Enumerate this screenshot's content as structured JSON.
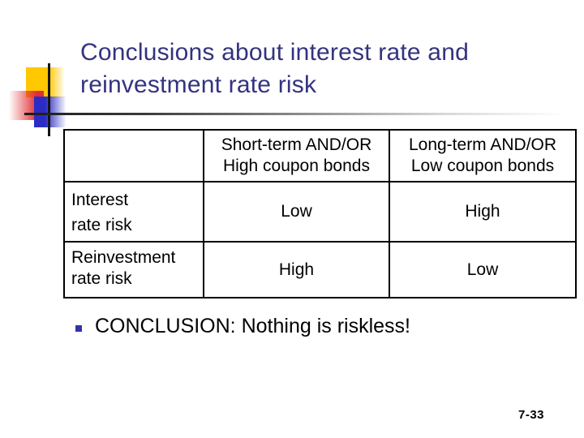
{
  "slide_title": {
    "line1": "Conclusions about interest rate and",
    "line2": "reinvestment rate risk"
  },
  "risk_table": {
    "corner_label": "",
    "column_headers": [
      {
        "line1": "Short-term AND/OR",
        "line2": "High coupon bonds"
      },
      {
        "line1": "Long-term AND/OR",
        "line2": "Low coupon bonds"
      }
    ],
    "rows": [
      {
        "label": {
          "line1": "Interest",
          "line2": "rate risk"
        },
        "values": [
          "Low",
          "High"
        ]
      },
      {
        "label": {
          "line1": "Reinvestment",
          "line2": "rate risk"
        },
        "values": [
          "High",
          "Low"
        ]
      }
    ]
  },
  "conclusion": {
    "bullet_text": "CONCLUSION: Nothing is riskless!"
  },
  "footer": {
    "slide_number": "7-33"
  },
  "icons": {
    "bullet_marker": "square-bullet-icon"
  },
  "colors": {
    "title_text": "#333380",
    "body_text": "#000000",
    "bullet_marker": "#3333AA",
    "accent_yellow": "#FFC800",
    "accent_red": "#E02E34",
    "accent_blue": "#2C2CC4",
    "divider_dark": "#1C1C1C"
  }
}
